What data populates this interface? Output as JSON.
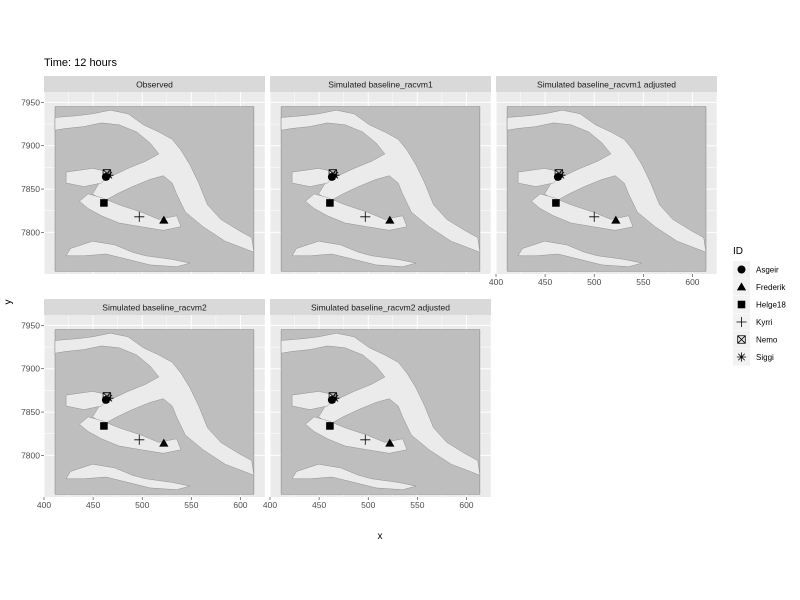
{
  "chart_data": {
    "type": "scatter",
    "subtype": "faceted map with point markers",
    "title": "Time: 12 hours",
    "xlabel": "x",
    "ylabel": "y",
    "xlim": [
      400,
      625
    ],
    "ylim": [
      7752,
      7962
    ],
    "xticks": [
      400,
      450,
      500,
      550,
      600
    ],
    "yticks": [
      7800,
      7850,
      7900,
      7950
    ],
    "grid": true,
    "legend": {
      "title": "ID",
      "position": "right",
      "entries": [
        "Asgeir",
        "Frederik",
        "Helge18",
        "Kyrri",
        "Nemo",
        "Siggi"
      ]
    },
    "shapes": {
      "Asgeir": "circle",
      "Frederik": "triangle",
      "Helge18": "square",
      "Kyrri": "plus",
      "Nemo": "square-cross",
      "Siggi": "asterisk"
    },
    "panels": [
      {
        "label": "Observed",
        "points": [
          {
            "id": "Asgeir",
            "x": 463,
            "y": 7864
          },
          {
            "id": "Nemo",
            "x": 464,
            "y": 7868
          },
          {
            "id": "Siggi",
            "x": 466,
            "y": 7866
          },
          {
            "id": "Helge18",
            "x": 461,
            "y": 7834
          },
          {
            "id": "Kyrri",
            "x": 497,
            "y": 7818
          },
          {
            "id": "Frederik",
            "x": 522,
            "y": 7814
          }
        ]
      },
      {
        "label": "Simulated baseline_racvm1",
        "points": [
          {
            "id": "Asgeir",
            "x": 463,
            "y": 7864
          },
          {
            "id": "Nemo",
            "x": 464,
            "y": 7868
          },
          {
            "id": "Siggi",
            "x": 466,
            "y": 7866
          },
          {
            "id": "Helge18",
            "x": 461,
            "y": 7834
          },
          {
            "id": "Kyrri",
            "x": 497,
            "y": 7818
          },
          {
            "id": "Frederik",
            "x": 522,
            "y": 7814
          }
        ]
      },
      {
        "label": "Simulated baseline_racvm1 adjusted",
        "points": [
          {
            "id": "Asgeir",
            "x": 463,
            "y": 7864
          },
          {
            "id": "Nemo",
            "x": 464,
            "y": 7868
          },
          {
            "id": "Siggi",
            "x": 466,
            "y": 7866
          },
          {
            "id": "Helge18",
            "x": 461,
            "y": 7834
          },
          {
            "id": "Kyrri",
            "x": 500,
            "y": 7818
          },
          {
            "id": "Frederik",
            "x": 522,
            "y": 7814
          }
        ]
      },
      {
        "label": "Simulated baseline_racvm2",
        "points": [
          {
            "id": "Asgeir",
            "x": 463,
            "y": 7864
          },
          {
            "id": "Nemo",
            "x": 464,
            "y": 7868
          },
          {
            "id": "Siggi",
            "x": 466,
            "y": 7866
          },
          {
            "id": "Helge18",
            "x": 461,
            "y": 7834
          },
          {
            "id": "Kyrri",
            "x": 497,
            "y": 7818
          },
          {
            "id": "Frederik",
            "x": 522,
            "y": 7814
          }
        ]
      },
      {
        "label": "Simulated baseline_racvm2 adjusted",
        "points": [
          {
            "id": "Asgeir",
            "x": 463,
            "y": 7864
          },
          {
            "id": "Nemo",
            "x": 464,
            "y": 7868
          },
          {
            "id": "Siggi",
            "x": 466,
            "y": 7866
          },
          {
            "id": "Helge18",
            "x": 461,
            "y": 7834
          },
          {
            "id": "Kyrri",
            "x": 497,
            "y": 7818
          },
          {
            "id": "Frederik",
            "x": 522,
            "y": 7814
          }
        ]
      }
    ],
    "colors": {
      "panel_background": "#ebebeb",
      "land": "#bebebe",
      "water": "#ebebeb",
      "strip": "#d9d9d9",
      "grid": "#ffffff",
      "points": "#000000"
    }
  }
}
